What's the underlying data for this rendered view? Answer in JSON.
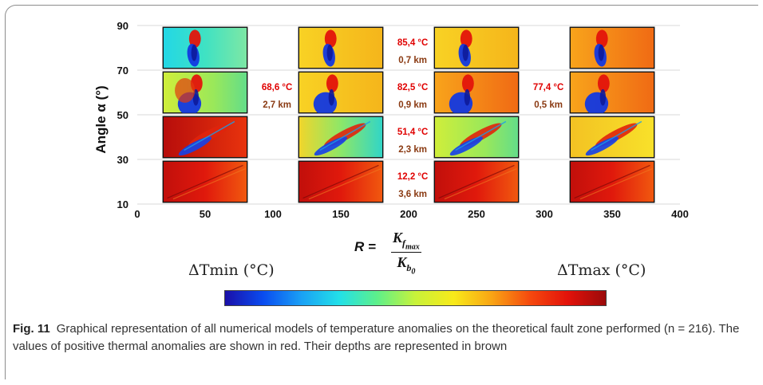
{
  "chart_data": {
    "type": "heatmap",
    "title": "",
    "xlabel": "",
    "ylabel": "Angle α (°)",
    "xlim": [
      0,
      400
    ],
    "ylim": [
      10,
      90
    ],
    "x_ticks": [
      0,
      50,
      100,
      150,
      200,
      250,
      300,
      350,
      400
    ],
    "y_ticks": [
      10,
      30,
      50,
      70,
      90
    ],
    "grid": true,
    "model_columns_R": [
      50,
      150,
      250,
      350
    ],
    "model_rows_angle": [
      80,
      60,
      40,
      20
    ],
    "anomalies": [
      {
        "R": 150,
        "angle": 80,
        "temperature": "85,4 °C",
        "depth": "0,7 km"
      },
      {
        "R": 50,
        "angle": 60,
        "temperature": "68,6 °C",
        "depth": "2,7 km"
      },
      {
        "R": 150,
        "angle": 60,
        "temperature": "82,5 °C",
        "depth": "0,9 km"
      },
      {
        "R": 250,
        "angle": 60,
        "temperature": "77,4 °C",
        "depth": "0,5 km"
      },
      {
        "R": 150,
        "angle": 40,
        "temperature": "51,4 °C",
        "depth": "2,3 km"
      },
      {
        "R": 150,
        "angle": 20,
        "temperature": "12,2 °C",
        "depth": "3,6 km"
      }
    ],
    "formula": {
      "lhs": "R =",
      "numerator_base": "K",
      "numerator_sub": "f",
      "numerator_subsub": "max",
      "denominator_base": "K",
      "denominator_sub": "b",
      "denominator_subsub": "0"
    },
    "colorbar": {
      "min_label": "ΔTmin (°C)",
      "max_label": "ΔTmax (°C)",
      "colors": [
        "#1a0fa8",
        "#0a4cf0",
        "#1aa0f5",
        "#22e0e8",
        "#5ef08a",
        "#c8f23a",
        "#f8ea1a",
        "#f9a514",
        "#f54a0e",
        "#e3120a",
        "#9b0a0a"
      ]
    },
    "caption": {
      "label": "Fig. 11",
      "text": "Graphical representation of all numerical models of temperature anomalies on the theoretical fault zone performed (n = 216). The values of positive thermal anomalies are shown in red. Their depths are represented in brown"
    }
  },
  "colors": {
    "temp_text": "#e00000",
    "depth_text": "#8a3a12"
  }
}
